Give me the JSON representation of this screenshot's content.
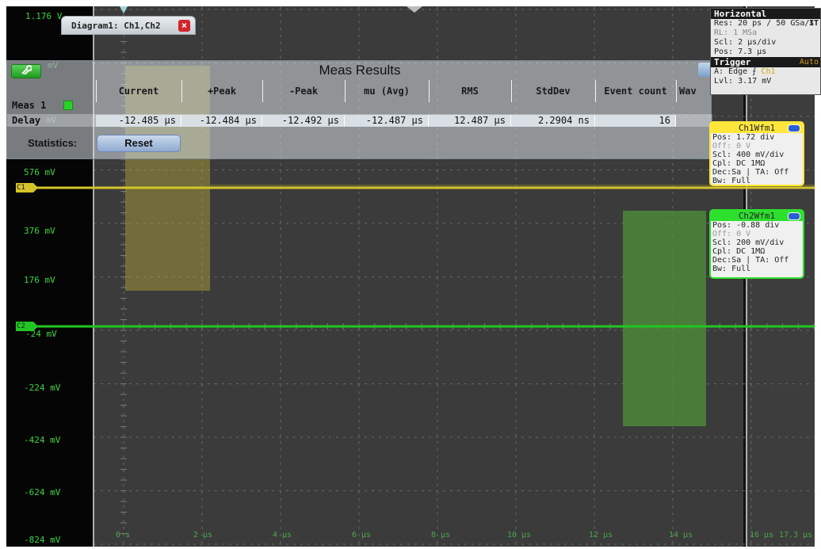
{
  "diagram_tab": {
    "title": "Diagram1: Ch1,Ch2",
    "close": "×"
  },
  "y_axis": {
    "top_label": "1.176 V",
    "labels": [
      "576 mV",
      "376 mV",
      "176 mV",
      "-24 mV",
      "-224 mV",
      "-424 mV",
      "-624 mV",
      "-824 mV"
    ],
    "hidden_labels": [
      "mV",
      "mV"
    ]
  },
  "x_axis": {
    "labels": [
      "0 s",
      "2 µs",
      "4 µs",
      "6 µs",
      "8 µs",
      "10 µs",
      "12 µs",
      "14 µs",
      "16 µs",
      "17.3 µs"
    ]
  },
  "markers": {
    "ch1": "C1",
    "ch2": "C2"
  },
  "meas_results": {
    "title": "Meas Results",
    "tool_icon": "wrench-icon",
    "columns": [
      "Current",
      "+Peak",
      "-Peak",
      "mu (Avg)",
      "RMS",
      "StdDev",
      "Event count",
      "Wav"
    ],
    "meas_label": "Meas 1",
    "row_label": "Delay",
    "values": [
      "-12.485 µs",
      "-12.484 µs",
      "-12.492 µs",
      "-12.487 µs",
      "12.487 µs",
      "2.2904 ns",
      "16"
    ],
    "statistics_label": "Statistics:",
    "reset_label": "Reset"
  },
  "horizontal": {
    "title": "Horizontal",
    "res": "Res: 20 ps / 50 GSa/s",
    "res_suffix": "IT",
    "rl": "RL:  1 MSa",
    "scl": "Scl: 2 µs/div",
    "pos": "Pos: 7.3 µs"
  },
  "trigger": {
    "title": "Trigger",
    "mode": "Auto",
    "a": "A:   Edge ",
    "slope": "⨍",
    "source": "Ch1",
    "lvl": "Lvl: 3.17 mV"
  },
  "ch1_box": {
    "title": "Ch1Wfm1",
    "pos": "Pos: 1.72 div",
    "off": "Off: 0 V",
    "scl": "Scl: 400 mV/div",
    "cpl": "Cpl: DC 1MΩ",
    "dec": "Dec:Sa | TA: Off",
    "bw": "Bw: Full",
    "color": "#ffe63a"
  },
  "ch2_box": {
    "title": "Ch2Wfm1",
    "pos": "Pos: -0.88 div",
    "off": "Off: 0 V",
    "scl": "Scl: 200 mV/div",
    "cpl": "Cpl: DC 1MΩ",
    "dec": "Dec:Sa | TA: Off",
    "bw": "Bw: Full",
    "color": "#2ee02e"
  },
  "colors": {
    "ch1": "#d4c42a",
    "ch2": "#22c622",
    "grid_bg": "#3b3b3b",
    "axis_text": "#35d635"
  }
}
